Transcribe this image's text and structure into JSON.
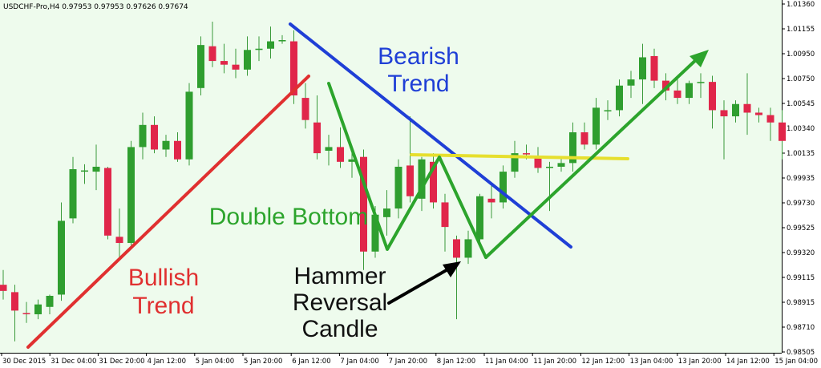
{
  "chart_data": {
    "type": "candlestick",
    "symbol_header": "USDCHF-Pro,H4  0.97953 0.97953 0.97626 0.97674",
    "colors": {
      "background": "#eefbed",
      "bull_candle": "#2f9e2f",
      "bear_candle": "#e0264a",
      "wick": "#3a9a3a",
      "bullish_trend": "#e03030",
      "bearish_trend": "#1f3fd6",
      "double_bottom": "#2ca42c",
      "resistance": "#e6df2e",
      "arrow": "#000000"
    },
    "ylim": [
      0.9854,
      1.0137
    ],
    "y_ticks": [
      "1.01360",
      "1.01155",
      "1.00950",
      "1.00750",
      "1.00545",
      "1.00340",
      "1.00135",
      "0.99935",
      "0.99730",
      "0.99525",
      "0.99320",
      "0.99115",
      "0.98915",
      "0.98710",
      "0.98505"
    ],
    "x_ticks": [
      "30 Dec 2015",
      "31 Dec 04:00",
      "31 Dec 20:00",
      "4 Jan 12:00",
      "5 Jan 04:00",
      "5 Jan 20:00",
      "6 Jan 12:00",
      "7 Jan 04:00",
      "7 Jan 20:00",
      "8 Jan 12:00",
      "11 Jan 04:00",
      "11 Jan 20:00",
      "12 Jan 12:00",
      "13 Jan 04:00",
      "13 Jan 20:00",
      "14 Jan 12:00",
      "15 Jan 04:00"
    ],
    "candles": [
      {
        "o": 0.9908,
        "h": 0.992,
        "l": 0.9896,
        "c": 0.9903
      },
      {
        "o": 0.9902,
        "h": 0.9908,
        "l": 0.9862,
        "c": 0.9887
      },
      {
        "o": 0.9885,
        "h": 0.9894,
        "l": 0.9877,
        "c": 0.9884
      },
      {
        "o": 0.9884,
        "h": 0.9896,
        "l": 0.988,
        "c": 0.9892
      },
      {
        "o": 0.989,
        "h": 0.99,
        "l": 0.9884,
        "c": 0.9899
      },
      {
        "o": 0.99,
        "h": 0.9975,
        "l": 0.9895,
        "c": 0.996
      },
      {
        "o": 0.9962,
        "h": 1.0012,
        "l": 0.9958,
        "c": 1.0002
      },
      {
        "o": 1.0,
        "h": 1.0006,
        "l": 0.999,
        "c": 1.0001
      },
      {
        "o": 1.0,
        "h": 1.0022,
        "l": 0.9985,
        "c": 1.0004
      },
      {
        "o": 1.0003,
        "h": 1.0004,
        "l": 0.9945,
        "c": 0.9948
      },
      {
        "o": 0.9947,
        "h": 0.997,
        "l": 0.993,
        "c": 0.9942
      },
      {
        "o": 0.9942,
        "h": 1.0025,
        "l": 0.994,
        "c": 1.002
      },
      {
        "o": 1.002,
        "h": 1.0048,
        "l": 1.001,
        "c": 1.0038
      },
      {
        "o": 1.0038,
        "h": 1.0045,
        "l": 1.0015,
        "c": 1.0018
      },
      {
        "o": 1.0018,
        "h": 1.003,
        "l": 1.0012,
        "c": 1.0025
      },
      {
        "o": 1.0025,
        "h": 1.0032,
        "l": 1.0008,
        "c": 1.001
      },
      {
        "o": 1.001,
        "h": 1.0072,
        "l": 1.0005,
        "c": 1.0065
      },
      {
        "o": 1.0068,
        "h": 1.011,
        "l": 1.0062,
        "c": 1.0103
      },
      {
        "o": 1.0102,
        "h": 1.0122,
        "l": 1.0085,
        "c": 1.009
      },
      {
        "o": 1.009,
        "h": 1.0104,
        "l": 1.008,
        "c": 1.0087
      },
      {
        "o": 1.0087,
        "h": 1.01,
        "l": 1.0076,
        "c": 1.0083
      },
      {
        "o": 1.0083,
        "h": 1.011,
        "l": 1.0078,
        "c": 1.0099
      },
      {
        "o": 1.0099,
        "h": 1.011,
        "l": 1.009,
        "c": 1.01
      },
      {
        "o": 1.01,
        "h": 1.0118,
        "l": 1.0092,
        "c": 1.0106
      },
      {
        "o": 1.0106,
        "h": 1.0111,
        "l": 1.0104,
        "c": 1.0107
      },
      {
        "o": 1.0106,
        "h": 1.0115,
        "l": 1.0055,
        "c": 1.0062
      },
      {
        "o": 1.006,
        "h": 1.0072,
        "l": 1.0035,
        "c": 1.0042
      },
      {
        "o": 1.004,
        "h": 1.0062,
        "l": 1.001,
        "c": 1.0015
      },
      {
        "o": 1.0017,
        "h": 1.003,
        "l": 1.0005,
        "c": 1.002
      },
      {
        "o": 1.002,
        "h": 1.0036,
        "l": 1.0003,
        "c": 1.0008
      },
      {
        "o": 1.0008,
        "h": 1.0016,
        "l": 0.9995,
        "c": 1.001
      },
      {
        "o": 1.0012,
        "h": 1.0018,
        "l": 0.992,
        "c": 0.9935
      },
      {
        "o": 0.9935,
        "h": 0.9972,
        "l": 0.993,
        "c": 0.9965
      },
      {
        "o": 0.9963,
        "h": 0.9985,
        "l": 0.9948,
        "c": 0.997
      },
      {
        "o": 0.997,
        "h": 1.001,
        "l": 0.9962,
        "c": 1.0004
      },
      {
        "o": 1.0005,
        "h": 1.0045,
        "l": 0.9975,
        "c": 0.998
      },
      {
        "o": 0.9978,
        "h": 1.0012,
        "l": 0.9968,
        "c": 1.001
      },
      {
        "o": 1.0008,
        "h": 1.0015,
        "l": 0.997,
        "c": 0.9975
      },
      {
        "o": 0.9975,
        "h": 0.9982,
        "l": 0.9935,
        "c": 0.9955
      },
      {
        "o": 0.9945,
        "h": 0.9948,
        "l": 0.988,
        "c": 0.993
      },
      {
        "o": 0.993,
        "h": 0.9952,
        "l": 0.9925,
        "c": 0.9945
      },
      {
        "o": 0.9945,
        "h": 0.9982,
        "l": 0.994,
        "c": 0.998
      },
      {
        "o": 0.9978,
        "h": 0.999,
        "l": 0.9962,
        "c": 0.9975
      },
      {
        "o": 0.9975,
        "h": 1.0005,
        "l": 0.997,
        "c": 1.0
      },
      {
        "o": 1.0,
        "h": 1.0025,
        "l": 0.9995,
        "c": 1.0015
      },
      {
        "o": 1.0015,
        "h": 1.0022,
        "l": 1.001,
        "c": 1.0014
      },
      {
        "o": 1.0013,
        "h": 1.002,
        "l": 0.9999,
        "c": 1.0003
      },
      {
        "o": 1.0003,
        "h": 1.0008,
        "l": 0.9968,
        "c": 1.0004
      },
      {
        "o": 1.0004,
        "h": 1.0012,
        "l": 1.0,
        "c": 1.0007
      },
      {
        "o": 1.0007,
        "h": 1.004,
        "l": 1.0,
        "c": 1.0032
      },
      {
        "o": 1.0032,
        "h": 1.004,
        "l": 1.0018,
        "c": 1.0022
      },
      {
        "o": 1.0022,
        "h": 1.006,
        "l": 1.0018,
        "c": 1.0052
      },
      {
        "o": 1.005,
        "h": 1.0058,
        "l": 1.0042,
        "c": 1.005
      },
      {
        "o": 1.005,
        "h": 1.0075,
        "l": 1.0045,
        "c": 1.007
      },
      {
        "o": 1.007,
        "h": 1.0082,
        "l": 1.006,
        "c": 1.0075
      },
      {
        "o": 1.0075,
        "h": 1.0104,
        "l": 1.0055,
        "c": 1.0093
      },
      {
        "o": 1.0094,
        "h": 1.01,
        "l": 1.0068,
        "c": 1.0074
      },
      {
        "o": 1.0074,
        "h": 1.008,
        "l": 1.0058,
        "c": 1.0066
      },
      {
        "o": 1.0066,
        "h": 1.0075,
        "l": 1.0055,
        "c": 1.006
      },
      {
        "o": 1.006,
        "h": 1.0074,
        "l": 1.0055,
        "c": 1.0072
      },
      {
        "o": 1.0072,
        "h": 1.008,
        "l": 1.006,
        "c": 1.0073
      },
      {
        "o": 1.0073,
        "h": 1.0078,
        "l": 1.0035,
        "c": 1.005
      },
      {
        "o": 1.005,
        "h": 1.0058,
        "l": 1.001,
        "c": 1.0045
      },
      {
        "o": 1.0045,
        "h": 1.0058,
        "l": 1.004,
        "c": 1.0055
      },
      {
        "o": 1.0055,
        "h": 1.008,
        "l": 1.003,
        "c": 1.0048
      },
      {
        "o": 1.0048,
        "h": 1.0052,
        "l": 1.004,
        "c": 1.0046
      },
      {
        "o": 1.0046,
        "h": 1.0052,
        "l": 1.0025,
        "c": 1.004
      },
      {
        "o": 1.004,
        "h": 1.005,
        "l": 1.001,
        "c": 1.0025
      }
    ],
    "annotations": {
      "bearish": {
        "line1": "Bearish",
        "line2": "Trend"
      },
      "double_bottom": "Double Bottom",
      "bullish": {
        "line1": "Bullish",
        "line2": "Trend"
      },
      "hammer": {
        "line1": "Hammer",
        "line2": "Reversal",
        "line3": "Candle"
      }
    }
  }
}
